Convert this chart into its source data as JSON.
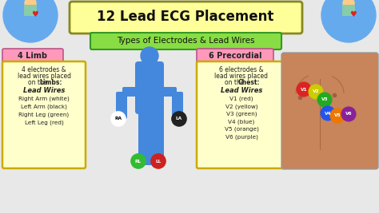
{
  "title": "12 Lead ECG Placement",
  "subtitle": "Types of Electrodes & Lead Wires",
  "title_bg": "#FFFF99",
  "subtitle_bg": "#88DD44",
  "bg_color": "#E8E8E8",
  "limb_header": "4 Limb",
  "limb_header_bg": "#FF99BB",
  "precordial_header": "6 Precordial",
  "precordial_header_bg": "#FF99BB",
  "limb_box_bg": "#FFFFCC",
  "precordial_box_bg": "#FFFFCC",
  "limb_text_lines": [
    "4 electrodes &",
    "lead wires placed",
    "on the ",
    "Limbs:"
  ],
  "limb_lead_title": "Lead Wires",
  "limb_leads": [
    "Right Arm (white)",
    "Left Arm (black)",
    "Right Leg (green)",
    "Left Leg (red)"
  ],
  "precordial_text_lines": [
    "6 electrodes &",
    "lead wires placed",
    "on the ",
    "Chest:"
  ],
  "precordial_lead_title": "Lead Wires",
  "precordial_leads": [
    "V1 (red)",
    "V2 (yellow)",
    "V3 (green)",
    "V4 (blue)",
    "V5 (orange)",
    "V6 (purple)"
  ],
  "electrode_labels": [
    "RA",
    "LA",
    "RL",
    "LL"
  ],
  "electrode_colors": [
    "#FFFFFF",
    "#222222",
    "#33BB33",
    "#CC2222"
  ],
  "electrode_text_colors": [
    "#000000",
    "#FFFFFF",
    "#FFFFFF",
    "#FFFFFF"
  ],
  "v_labels": [
    "V1",
    "V2",
    "V3",
    "V4",
    "V5",
    "V6"
  ],
  "v_colors": [
    "#DD2222",
    "#CCCC00",
    "#22AA22",
    "#2255EE",
    "#EE7700",
    "#882299"
  ],
  "body_color": "#4488DD",
  "skin_color": "#C8845A",
  "skin_dark": "#A86840"
}
